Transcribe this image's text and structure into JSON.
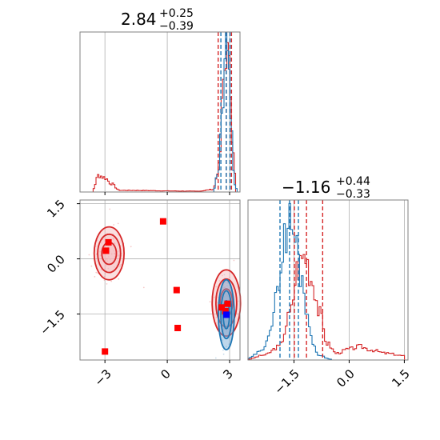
{
  "chart_data": {
    "type": "corner",
    "params": [
      "p1",
      "p2"
    ],
    "grid": true,
    "colors": {
      "red": "#d62728",
      "blue": "#1f77b4",
      "marker_red": "#ff0000",
      "marker_blue": "#0000ff",
      "grid": "#b0b0b0",
      "red_fill": "#f3b8bb"
    },
    "axes": {
      "p1": {
        "lim": [
          -4.2,
          3.5
        ],
        "ticks": [
          -3,
          0,
          3
        ],
        "tick_labels": [
          "−3",
          "0",
          "3"
        ]
      },
      "p2": {
        "lim": [
          -2.75,
          1.6
        ],
        "ticks": [
          -1.5,
          0.0,
          1.5
        ],
        "tick_labels": [
          "−1.5",
          "0.0",
          "1.5"
        ]
      }
    },
    "titles": {
      "p1": {
        "value": "2.84",
        "plus": "+0.25",
        "minus": "−0.39"
      },
      "p2": {
        "value": "−1.16",
        "plus": "+0.44",
        "minus": "−0.33"
      }
    },
    "quantiles": {
      "p1": {
        "red": [
          2.45,
          2.84,
          3.09
        ],
        "blue": [
          2.58,
          2.84,
          3.02
        ]
      },
      "p2": {
        "red": [
          -1.49,
          -1.16,
          -0.72
        ],
        "blue": [
          -1.88,
          -1.62,
          -1.38
        ]
      }
    },
    "hist_p1": {
      "red": [
        [
          -3.6,
          0.2
        ],
        [
          -3.3,
          2.0
        ],
        [
          -3.0,
          1.7
        ],
        [
          -2.7,
          1.0
        ],
        [
          -2.3,
          0.2
        ],
        [
          1.5,
          0.1
        ],
        [
          2.2,
          0.3
        ],
        [
          2.5,
          3.0
        ],
        [
          2.7,
          13.0
        ],
        [
          2.85,
          17.0
        ],
        [
          3.0,
          14.0
        ],
        [
          3.15,
          6.0
        ],
        [
          3.3,
          1.0
        ]
      ],
      "blue": [
        [
          2.2,
          0.0
        ],
        [
          2.45,
          2.5
        ],
        [
          2.65,
          10.0
        ],
        [
          2.8,
          17.5
        ],
        [
          2.95,
          16.0
        ],
        [
          3.1,
          6.5
        ],
        [
          3.25,
          0.8
        ],
        [
          3.4,
          0.0
        ]
      ],
      "ymax": 19
    },
    "hist_p2": {
      "red": [
        [
          -2.75,
          0.1
        ],
        [
          -2.3,
          0.6
        ],
        [
          -1.9,
          1.6
        ],
        [
          -1.6,
          5.5
        ],
        [
          -1.4,
          11.0
        ],
        [
          -1.2,
          12.5
        ],
        [
          -1.0,
          9.5
        ],
        [
          -0.8,
          5.5
        ],
        [
          -0.6,
          2.0
        ],
        [
          -0.35,
          0.8
        ],
        [
          0.0,
          1.3
        ],
        [
          0.3,
          1.6
        ],
        [
          0.6,
          1.2
        ],
        [
          1.0,
          0.8
        ],
        [
          1.5,
          0.5
        ]
      ],
      "blue": [
        [
          -2.75,
          0.2
        ],
        [
          -2.4,
          1.0
        ],
        [
          -2.1,
          4.0
        ],
        [
          -1.9,
          10.0
        ],
        [
          -1.72,
          15.0
        ],
        [
          -1.6,
          16.5
        ],
        [
          -1.45,
          14.0
        ],
        [
          -1.3,
          10.0
        ],
        [
          -1.15,
          6.0
        ],
        [
          -1.0,
          2.0
        ],
        [
          -0.8,
          0.5
        ],
        [
          -0.5,
          0.1
        ]
      ],
      "ymax": 19
    },
    "markers_red": [
      [
        -2.83,
        0.45
      ],
      [
        -2.95,
        0.22
      ],
      [
        -0.2,
        1.02
      ],
      [
        0.45,
        -0.85
      ],
      [
        0.5,
        -1.88
      ],
      [
        -3.0,
        -2.52
      ],
      [
        2.62,
        -1.32
      ],
      [
        2.8,
        -1.42
      ],
      [
        2.9,
        -1.22
      ]
    ],
    "markers_blue": [
      [
        2.85,
        -1.52
      ]
    ],
    "contours": {
      "red_upper": {
        "cx": -2.8,
        "cy": 0.15,
        "rx": [
          0.72,
          0.55,
          0.35
        ],
        "ry": [
          0.72,
          0.52,
          0.3
        ]
      },
      "red_lower": {
        "cx": 2.84,
        "cy": -1.2,
        "rx": [
          0.68,
          0.5,
          0.3
        ],
        "ry": [
          0.9,
          0.65,
          0.38
        ]
      },
      "blue_lower": {
        "cx": 2.84,
        "cy": -1.52,
        "rx": [
          0.38,
          0.26,
          0.15
        ],
        "ry": [
          0.95,
          0.65,
          0.38
        ]
      }
    }
  }
}
